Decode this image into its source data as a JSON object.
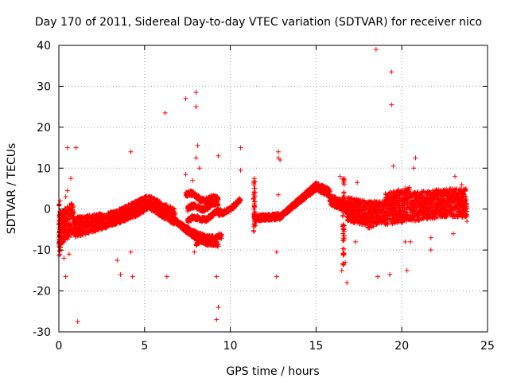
{
  "chart_data": {
    "type": "scatter",
    "title": "Day 170 of 2011, Sidereal Day-to-day VTEC variation (SDTVAR) for receiver nico",
    "xlabel": "GPS time / hours",
    "ylabel": "SDTVAR / TECUs",
    "xlim": [
      0,
      25
    ],
    "ylim": [
      -30,
      40
    ],
    "xticks": [
      "0",
      "5",
      "10",
      "15",
      "20",
      "25"
    ],
    "yticks": [
      "-30",
      "-20",
      "-10",
      "0",
      "10",
      "20",
      "30",
      "40"
    ],
    "grid": true,
    "marker": "+",
    "color": "#ff0000",
    "series_name": "SDTVAR",
    "outliers": [
      [
        0.5,
        15
      ],
      [
        1.0,
        15
      ],
      [
        0.4,
        -16.5
      ],
      [
        1.1,
        -27.5
      ],
      [
        0.7,
        7.5
      ],
      [
        0.5,
        4.5
      ],
      [
        0.4,
        3
      ],
      [
        0.3,
        -12
      ],
      [
        0.6,
        -11
      ],
      [
        3.4,
        -12.5
      ],
      [
        3.6,
        -16
      ],
      [
        4.2,
        -10.5
      ],
      [
        4.3,
        -16.5
      ],
      [
        4.2,
        14
      ],
      [
        6.3,
        -16.5
      ],
      [
        6.2,
        23.5
      ],
      [
        7.4,
        27
      ],
      [
        8.0,
        28.5
      ],
      [
        8.0,
        25
      ],
      [
        8.1,
        15.5
      ],
      [
        8.0,
        12.5
      ],
      [
        8.2,
        10
      ],
      [
        7.8,
        7
      ],
      [
        7.4,
        8.5
      ],
      [
        7.9,
        -10.5
      ],
      [
        9.2,
        -16.5
      ],
      [
        9.3,
        -24
      ],
      [
        9.2,
        -27
      ],
      [
        9.3,
        13
      ],
      [
        10.6,
        15
      ],
      [
        10.6,
        9.5
      ],
      [
        11.4,
        7.5
      ],
      [
        11.4,
        4
      ],
      [
        12.8,
        12.5
      ],
      [
        12.8,
        14
      ],
      [
        12.9,
        12
      ],
      [
        12.8,
        3.5
      ],
      [
        12.7,
        -10.5
      ],
      [
        12.7,
        -16.5
      ],
      [
        16.8,
        -18
      ],
      [
        16.5,
        -15
      ],
      [
        17.3,
        -8
      ],
      [
        18.5,
        39
      ],
      [
        18.6,
        -16.5
      ],
      [
        19.3,
        -16
      ],
      [
        19.4,
        33.5
      ],
      [
        19.4,
        25.5
      ],
      [
        19.5,
        10.5
      ],
      [
        20.3,
        -15
      ],
      [
        20.2,
        -8
      ],
      [
        20.5,
        -8
      ],
      [
        20.8,
        12.5
      ],
      [
        20.7,
        10
      ],
      [
        21.7,
        -7
      ],
      [
        21.7,
        -10
      ],
      [
        23.0,
        -6
      ],
      [
        23.1,
        8
      ],
      [
        23.5,
        6
      ],
      [
        23.8,
        -3
      ],
      [
        17.4,
        6.5
      ],
      [
        16.4,
        8
      ],
      [
        16.7,
        -13
      ],
      [
        22.8,
        4
      ]
    ],
    "bands": [
      {
        "x0": 0.0,
        "x1": 0.9,
        "ymin": [
          -9,
          -6
        ],
        "ymax": [
          -1,
          2
        ]
      },
      {
        "x0": 0.9,
        "x1": 2.5,
        "ymin": [
          -7,
          -5
        ],
        "ymax": [
          -2,
          -1
        ]
      },
      {
        "x0": 2.5,
        "x1": 3.5,
        "ymin": [
          -5,
          -3.5
        ],
        "ymax": [
          -1.5,
          0
        ]
      },
      {
        "x0": 3.5,
        "x1": 4.5,
        "ymin": [
          -3.5,
          -2
        ],
        "ymax": [
          0,
          2
        ]
      },
      {
        "x0": 4.5,
        "x1": 5.2,
        "ymin": [
          -2,
          0
        ],
        "ymax": [
          2,
          3.5
        ]
      },
      {
        "x0": 5.2,
        "x1": 6.8,
        "ymin": [
          0,
          -4
        ],
        "ymax": [
          3.5,
          0
        ]
      },
      {
        "x0": 11.4,
        "x1": 13.0,
        "ymin": [
          -3,
          -2.5
        ],
        "ymax": [
          -1.5,
          -1
        ]
      },
      {
        "x0": 13.0,
        "x1": 15.0,
        "ymin": [
          -2,
          4.5
        ],
        "ymax": [
          -1,
          6.5
        ]
      },
      {
        "x0": 15.0,
        "x1": 15.8,
        "ymin": [
          4.5,
          3
        ],
        "ymax": [
          6.5,
          5
        ]
      },
      {
        "x0": 15.8,
        "x1": 16.8,
        "ymin": [
          1,
          -1
        ],
        "ymax": [
          3.5,
          2
        ]
      },
      {
        "x0": 16.8,
        "x1": 18.0,
        "ymin": [
          -3,
          -4
        ],
        "ymax": [
          3,
          2
        ]
      },
      {
        "x0": 18.0,
        "x1": 19.0,
        "ymin": [
          -5,
          -3
        ],
        "ymax": [
          2,
          2
        ]
      },
      {
        "x0": 19.0,
        "x1": 20.5,
        "ymin": [
          -4,
          -3
        ],
        "ymax": [
          4,
          5.5
        ]
      },
      {
        "x0": 20.5,
        "x1": 22.5,
        "ymin": [
          -3,
          -2
        ],
        "ymax": [
          4,
          5
        ]
      },
      {
        "x0": 22.5,
        "x1": 23.8,
        "ymin": [
          -2,
          -2
        ],
        "ymax": [
          5,
          5
        ]
      }
    ],
    "curves": [
      {
        "x0": 6.0,
        "x1": 9.3,
        "y0": 0.5,
        "y1": -8.5,
        "shape": "decline"
      },
      {
        "x0": 6.8,
        "x1": 9.0,
        "y0": -3,
        "y1": -7,
        "shape": "decline"
      },
      {
        "x0": 7.4,
        "x1": 9.3,
        "y0": 3.5,
        "y1": 2,
        "shape": "flat"
      },
      {
        "x0": 7.5,
        "x1": 9.3,
        "y0": 0,
        "y1": 1,
        "shape": "flat"
      },
      {
        "x0": 7.5,
        "x1": 9.5,
        "y0": -3,
        "y1": -1,
        "shape": "flat"
      },
      {
        "x0": 9.3,
        "x1": 10.6,
        "y0": -1,
        "y1": 2.5,
        "shape": "rise"
      },
      {
        "x0": 8.0,
        "x1": 9.5,
        "y0": -8.5,
        "y1": -7,
        "shape": "flat"
      },
      {
        "x0": 16.8,
        "x1": 17.8,
        "y0": 1,
        "y1": -3,
        "shape": "decline"
      }
    ],
    "spikes": [
      {
        "x": 0.05,
        "ymin": -12,
        "ymax": 2
      },
      {
        "x": 11.4,
        "ymin": -6,
        "ymax": 7
      },
      {
        "x": 16.6,
        "ymin": -14,
        "ymax": 8
      }
    ]
  }
}
